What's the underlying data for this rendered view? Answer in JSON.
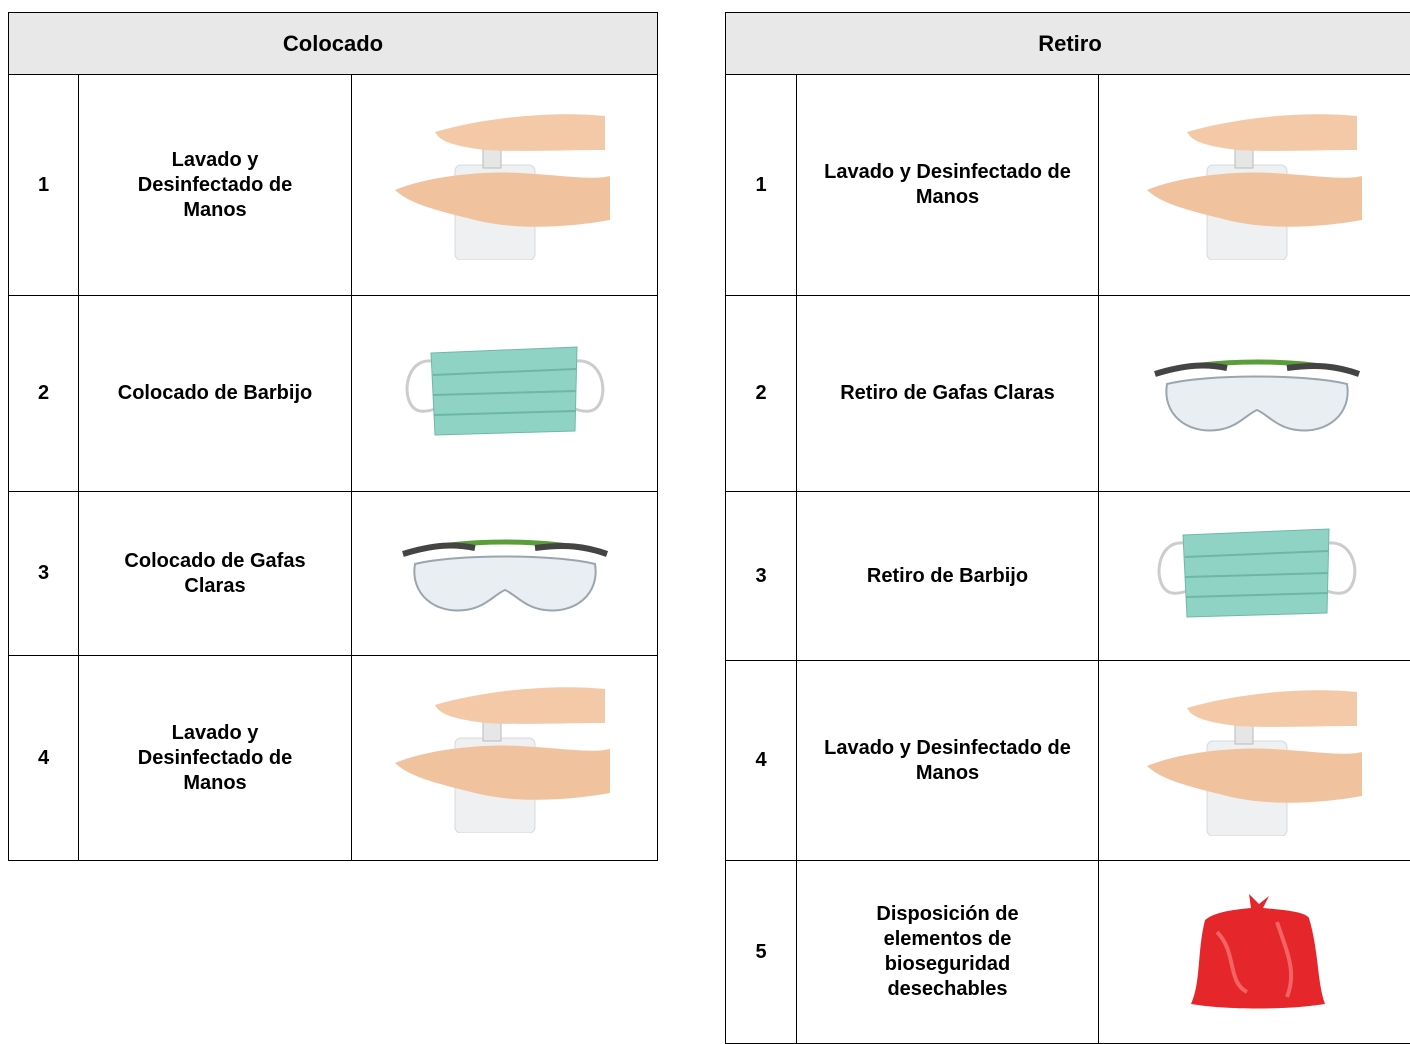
{
  "tables": [
    {
      "title": "Colocado",
      "rows": [
        [
          "1",
          "Lavado y Desinfectado de Manos"
        ],
        [
          "2",
          "Colocado de Barbijo"
        ],
        [
          "3",
          "Colocado de Gafas Claras"
        ],
        [
          "4",
          "Lavado y Desinfectado de Manos"
        ]
      ]
    },
    {
      "title": "Retiro",
      "rows": [
        [
          "1",
          "Lavado y Desinfectado de Manos"
        ],
        [
          "2",
          "Retiro de Gafas Claras"
        ],
        [
          "3",
          "Retiro de Barbijo"
        ],
        [
          "4",
          "Lavado y Desinfectado de Manos"
        ],
        [
          "5",
          "Disposición de elementos de bioseguridad desechables"
        ]
      ]
    }
  ]
}
